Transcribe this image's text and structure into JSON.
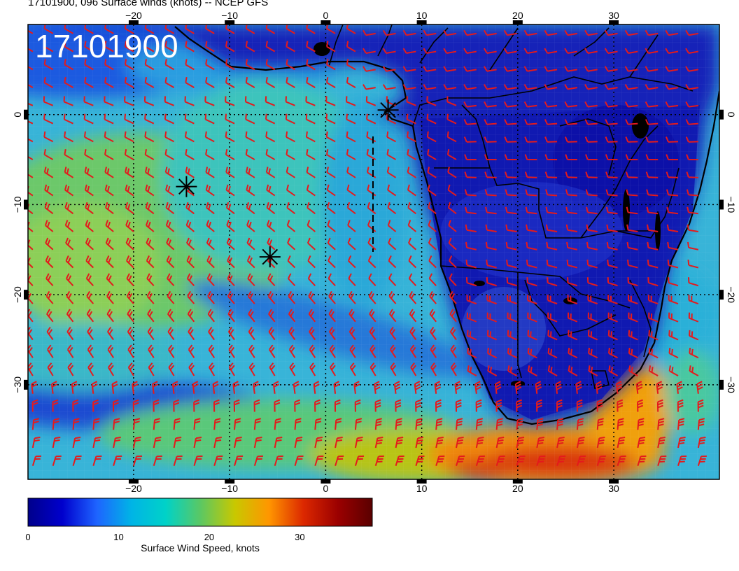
{
  "header": {
    "title": "17101900, 096 Surface winds (knots) -- NCEP GFS",
    "stamp": "17101900"
  },
  "map": {
    "lon_range": [
      -31,
      41
    ],
    "lat_range": [
      -40.5,
      10
    ],
    "lon_ticks": [
      -20,
      -10,
      0,
      10,
      20,
      30
    ],
    "lat_ticks": [
      0,
      -10,
      -20,
      -30
    ],
    "lon_tick_labels": [
      "−20",
      "−10",
      "0",
      "10",
      "20",
      "30"
    ],
    "lat_tick_labels": [
      "0",
      "−10",
      "−20",
      "−30"
    ],
    "gridlines": "dotted",
    "barb_color": "#e41a1c",
    "markers": [
      {
        "name": "storm-marker-1",
        "lon": 6.5,
        "lat": 0.5
      },
      {
        "name": "storm-marker-2",
        "lon": -14.5,
        "lat": -8.0
      },
      {
        "name": "storm-marker-3",
        "lon": -5.8,
        "lat": -15.8
      }
    ]
  },
  "colorbar": {
    "label": "Surface Wind Speed, knots",
    "range": [
      0,
      38
    ],
    "ticks": [
      {
        "value": 0,
        "label": "0"
      },
      {
        "value": 10,
        "label": "10"
      },
      {
        "value": 20,
        "label": "20"
      },
      {
        "value": 30,
        "label": "30"
      }
    ],
    "colors": [
      "#00008b",
      "#0000cd",
      "#1e64ff",
      "#00b4e6",
      "#00d2c8",
      "#5ac864",
      "#c8c800",
      "#ff9600",
      "#dc2800",
      "#9b0000",
      "#5a0000"
    ]
  }
}
